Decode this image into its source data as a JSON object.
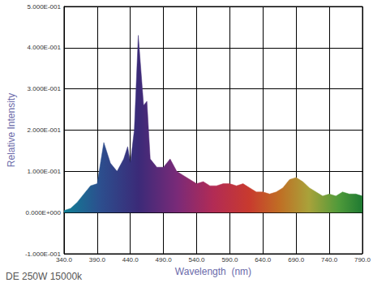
{
  "chart_data": {
    "type": "area",
    "title": "DE 250W 15000k",
    "x_label": "Wavelength  (nm)",
    "y_label": "Relative Intensity",
    "x": [
      340,
      350,
      360,
      370,
      380,
      390,
      395,
      400,
      410,
      420,
      430,
      436,
      440,
      446,
      452,
      460,
      465,
      470,
      480,
      490,
      500,
      510,
      520,
      530,
      540,
      550,
      560,
      570,
      580,
      590,
      600,
      610,
      620,
      630,
      640,
      650,
      660,
      670,
      680,
      690,
      700,
      710,
      720,
      730,
      740,
      750,
      760,
      770,
      780,
      790
    ],
    "values": [
      0.005,
      0.01,
      0.025,
      0.045,
      0.065,
      0.07,
      0.12,
      0.17,
      0.12,
      0.1,
      0.13,
      0.16,
      0.12,
      0.2,
      0.43,
      0.26,
      0.27,
      0.13,
      0.11,
      0.11,
      0.13,
      0.1,
      0.09,
      0.08,
      0.07,
      0.075,
      0.065,
      0.065,
      0.07,
      0.07,
      0.065,
      0.07,
      0.06,
      0.05,
      0.05,
      0.045,
      0.05,
      0.06,
      0.08,
      0.085,
      0.075,
      0.06,
      0.05,
      0.04,
      0.045,
      0.04,
      0.05,
      0.045,
      0.045,
      0.04
    ],
    "xlim": [
      340,
      790
    ],
    "xticks": [
      {
        "value": 340,
        "label": "340.0"
      },
      {
        "value": 390,
        "label": "390.0"
      },
      {
        "value": 440,
        "label": "440.0"
      },
      {
        "value": 490,
        "label": "490.0"
      },
      {
        "value": 540,
        "label": "540.0"
      },
      {
        "value": 590,
        "label": "590.0"
      },
      {
        "value": 640,
        "label": "640.0"
      },
      {
        "value": 690,
        "label": "690.0"
      },
      {
        "value": 740,
        "label": "740.0"
      },
      {
        "value": 790,
        "label": "790.0"
      }
    ],
    "ylim": [
      -0.1,
      0.5
    ],
    "yticks": [
      {
        "value": -0.1,
        "label": "-1.000E-001"
      },
      {
        "value": 0,
        "label": "0.000E+000"
      },
      {
        "value": 0.1,
        "label": "1.000E-001"
      },
      {
        "value": 0.2,
        "label": "2.000E-001"
      },
      {
        "value": 0.3,
        "label": "3.000E-001"
      },
      {
        "value": 0.4,
        "label": "4.000E-001"
      },
      {
        "value": 0.5,
        "label": "5.000E-001"
      }
    ],
    "grid": true
  }
}
